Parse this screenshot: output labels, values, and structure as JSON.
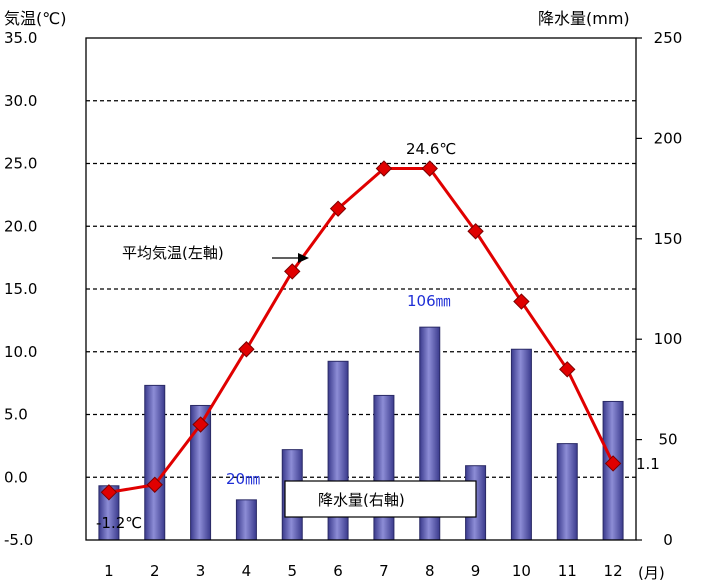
{
  "chart_data": {
    "type": "bar+line",
    "categories": [
      "1",
      "2",
      "3",
      "4",
      "5",
      "6",
      "7",
      "8",
      "9",
      "10",
      "11",
      "12"
    ],
    "x_unit": "(月)",
    "left_axis": {
      "title": "気温(℃)",
      "min": -5,
      "max": 35,
      "step": 5,
      "tick_labels": [
        "-5.0",
        "0.0",
        "5.0",
        "10.0",
        "15.0",
        "20.0",
        "25.0",
        "30.0",
        "35.0"
      ]
    },
    "right_axis": {
      "title": "降水量(mm)",
      "min": 0,
      "max": 250,
      "step": 50,
      "tick_labels": [
        "0",
        "50",
        "100",
        "150",
        "200",
        "250"
      ]
    },
    "grid": "dashed horizontal at left-axis ticks",
    "series": [
      {
        "name": "降水量(右軸)",
        "type": "bar",
        "axis": "right",
        "values": [
          27,
          77,
          67,
          20,
          45,
          89,
          72,
          106,
          37,
          95,
          48,
          69
        ],
        "color": "#5b5bb5"
      },
      {
        "name": "平均気温(左軸)",
        "type": "line",
        "axis": "left",
        "values": [
          -1.2,
          -0.6,
          4.2,
          10.2,
          16.4,
          21.4,
          24.6,
          24.6,
          19.6,
          14.0,
          8.6,
          1.1
        ],
        "color": "#e00000",
        "marker": "diamond"
      }
    ],
    "annotations": {
      "max_temp": "24.6℃",
      "min_temp": "-1.2℃",
      "dec_temp": "1.1",
      "max_precip": "106㎜",
      "min_precip": "20㎜",
      "temp_label": "平均気温(左軸)",
      "precip_label": "降水量(右軸)"
    }
  }
}
